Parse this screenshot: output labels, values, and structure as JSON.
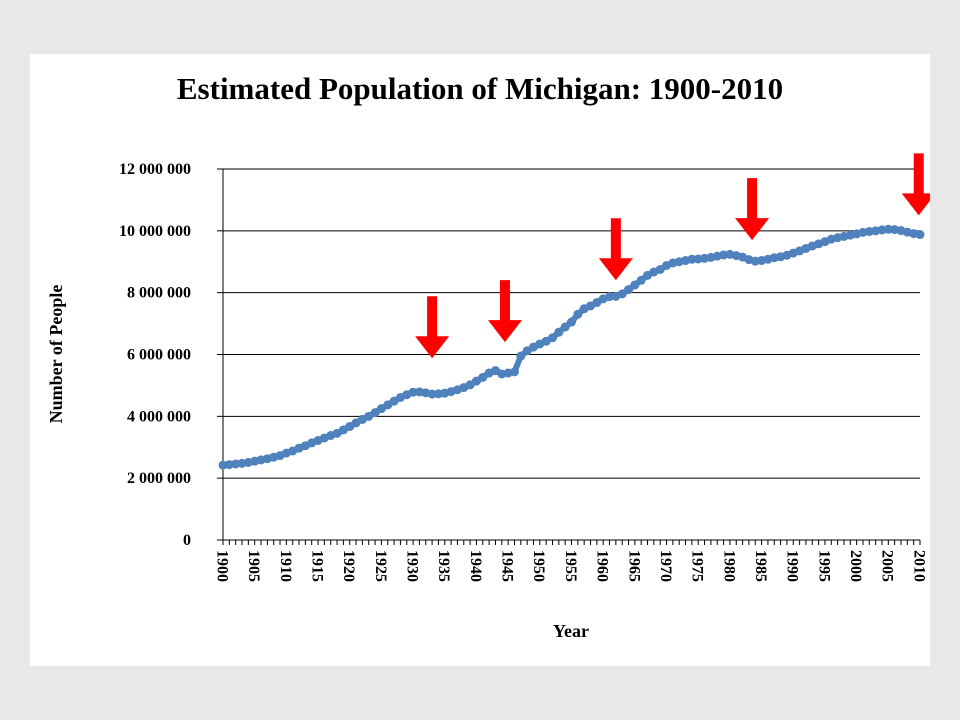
{
  "chart_data": {
    "type": "line",
    "title": "Estimated Population of Michigan: 1900-2010",
    "xlabel": "Year",
    "ylabel": "Number of People",
    "xlim": [
      1900,
      2010
    ],
    "ylim": [
      0,
      12000000
    ],
    "y_ticks": [
      0,
      2000000,
      4000000,
      6000000,
      8000000,
      10000000,
      12000000
    ],
    "y_tick_labels": [
      "0",
      "2 000 000",
      "4 000 000",
      "6 000 000",
      "8 000 000",
      "10 000 000",
      "12 000 000"
    ],
    "x_tick_labels": [
      "1900",
      "1905",
      "1910",
      "1915",
      "1920",
      "1925",
      "1930",
      "1935",
      "1940",
      "1945",
      "1950",
      "1955",
      "1960",
      "1965",
      "1970",
      "1975",
      "1980",
      "1985",
      "1990",
      "1995",
      "2000",
      "2005",
      "2010"
    ],
    "grid": "horizontal",
    "legend": "none",
    "series": [
      {
        "color": "#4f81bd",
        "x": [
          1900,
          1901,
          1902,
          1903,
          1904,
          1905,
          1906,
          1907,
          1908,
          1909,
          1910,
          1911,
          1912,
          1913,
          1914,
          1915,
          1916,
          1917,
          1918,
          1919,
          1920,
          1921,
          1922,
          1923,
          1924,
          1925,
          1926,
          1927,
          1928,
          1929,
          1930,
          1931,
          1932,
          1933,
          1934,
          1935,
          1936,
          1937,
          1938,
          1939,
          1940,
          1941,
          1942,
          1943,
          1944,
          1945,
          1946,
          1947,
          1948,
          1949,
          1950,
          1951,
          1952,
          1953,
          1954,
          1955,
          1956,
          1957,
          1958,
          1959,
          1960,
          1961,
          1962,
          1963,
          1964,
          1965,
          1966,
          1967,
          1968,
          1969,
          1970,
          1971,
          1972,
          1973,
          1974,
          1975,
          1976,
          1977,
          1978,
          1979,
          1980,
          1981,
          1982,
          1983,
          1984,
          1985,
          1986,
          1987,
          1988,
          1989,
          1990,
          1991,
          1992,
          1993,
          1994,
          1995,
          1996,
          1997,
          1998,
          1999,
          2000,
          2001,
          2002,
          2003,
          2004,
          2005,
          2006,
          2007,
          2008,
          2009,
          2010
        ],
        "y": [
          2420000,
          2440000,
          2460000,
          2480000,
          2510000,
          2550000,
          2590000,
          2630000,
          2680000,
          2730000,
          2810000,
          2880000,
          2970000,
          3050000,
          3140000,
          3220000,
          3300000,
          3380000,
          3450000,
          3560000,
          3670000,
          3790000,
          3900000,
          4000000,
          4120000,
          4250000,
          4370000,
          4490000,
          4610000,
          4700000,
          4780000,
          4790000,
          4760000,
          4720000,
          4730000,
          4750000,
          4800000,
          4860000,
          4930000,
          5020000,
          5140000,
          5260000,
          5400000,
          5480000,
          5370000,
          5400000,
          5440000,
          5950000,
          6120000,
          6240000,
          6340000,
          6430000,
          6540000,
          6720000,
          6890000,
          7050000,
          7300000,
          7480000,
          7570000,
          7680000,
          7800000,
          7870000,
          7880000,
          7960000,
          8100000,
          8250000,
          8400000,
          8560000,
          8670000,
          8750000,
          8880000,
          8960000,
          9000000,
          9040000,
          9080000,
          9090000,
          9110000,
          9140000,
          9180000,
          9220000,
          9240000,
          9200000,
          9150000,
          9070000,
          9020000,
          9040000,
          9080000,
          9130000,
          9160000,
          9210000,
          9280000,
          9350000,
          9430000,
          9510000,
          9580000,
          9650000,
          9730000,
          9780000,
          9820000,
          9860000,
          9900000,
          9950000,
          9980000,
          10000000,
          10030000,
          10050000,
          10040000,
          10010000,
          9960000,
          9910000,
          9880000
        ]
      }
    ],
    "annotations": [
      {
        "type": "arrow-down",
        "x": 1933,
        "tip_y": 5880000,
        "color": "#ff0000"
      },
      {
        "type": "arrow-down",
        "x": 1944.5,
        "tip_y": 6400000,
        "color": "#ff0000"
      },
      {
        "type": "arrow-down",
        "x": 1962,
        "tip_y": 8400000,
        "color": "#ff0000"
      },
      {
        "type": "arrow-down",
        "x": 1983.5,
        "tip_y": 9700000,
        "color": "#ff0000"
      },
      {
        "type": "arrow-down",
        "x": 2009.8,
        "tip_y": 10500000,
        "color": "#ff0000"
      }
    ]
  }
}
